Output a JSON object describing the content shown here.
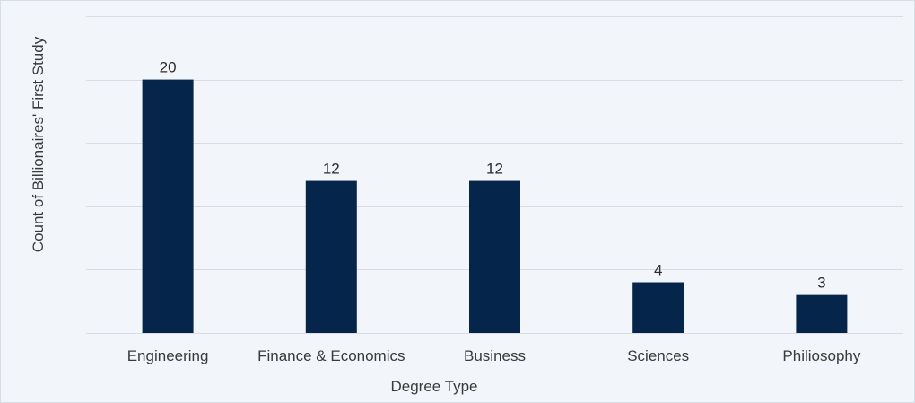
{
  "chart_data": {
    "type": "bar",
    "title": "",
    "xlabel": "Degree Type",
    "ylabel": "Count of Billionaires' First Study",
    "categories": [
      "Engineering",
      "Finance & Economics",
      "Business",
      "Sciences",
      "Philiosophy"
    ],
    "values": [
      20,
      12,
      12,
      4,
      3
    ],
    "value_labels": [
      "20",
      "12",
      "12",
      "4",
      "3"
    ],
    "ylim": [
      0,
      25
    ],
    "grid_step": 5,
    "grid": true,
    "show_y_tick_labels": false,
    "legend": "none",
    "colors": {
      "bar": "#06254a",
      "grid": "#d9dde3",
      "background": "#f2f5f9"
    }
  }
}
